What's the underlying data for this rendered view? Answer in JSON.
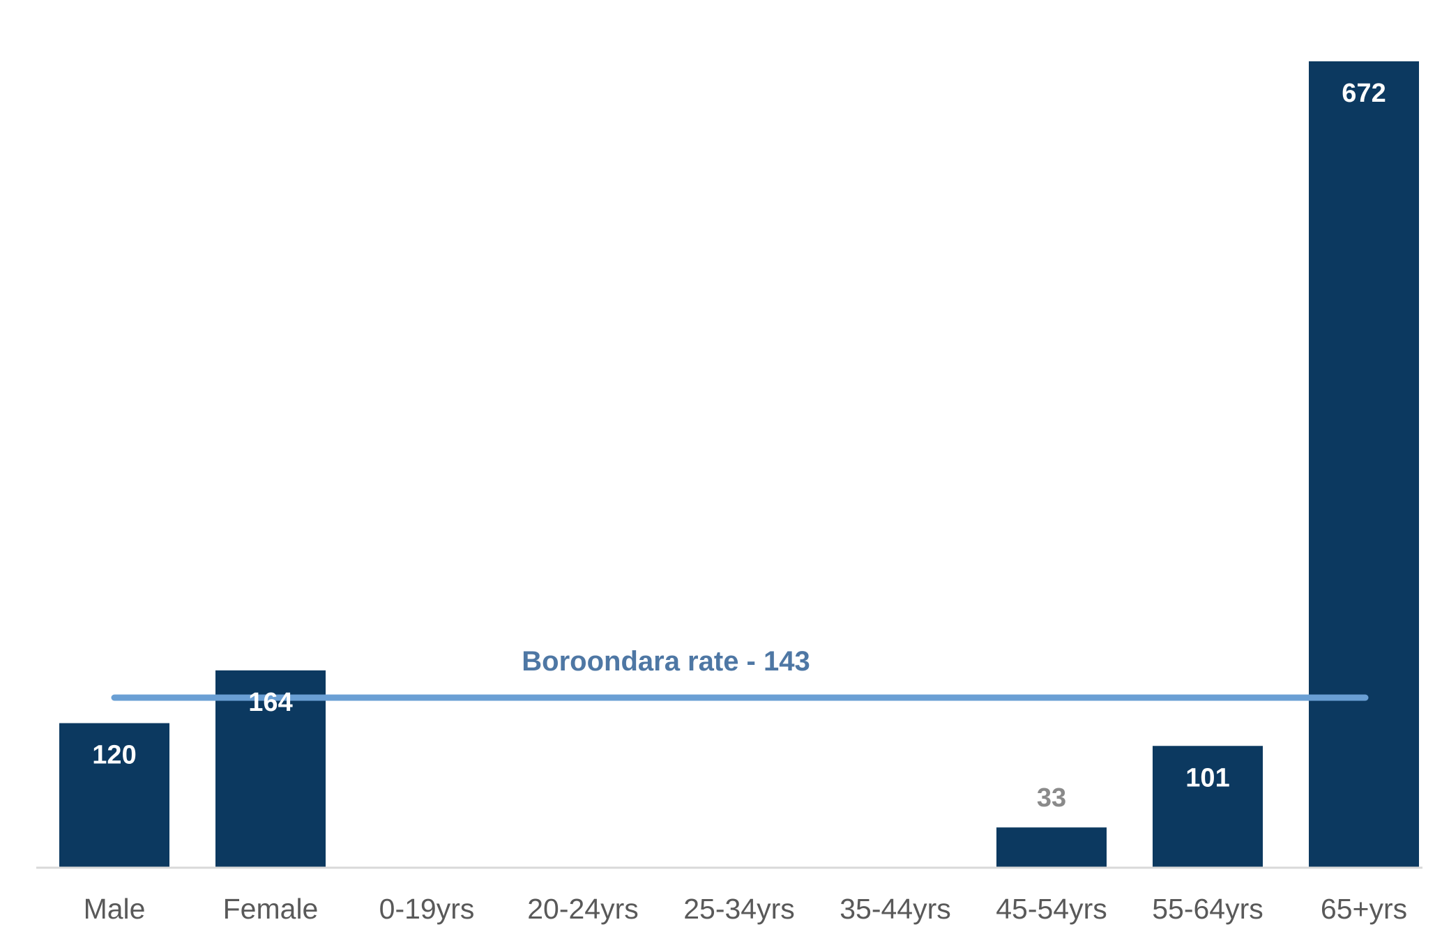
{
  "chart_data": {
    "type": "bar",
    "categories": [
      "Male",
      "Female",
      "0-19yrs",
      "20-24yrs",
      "25-34yrs",
      "35-44yrs",
      "45-54yrs",
      "55-64yrs",
      "65+yrs"
    ],
    "values": [
      120,
      164,
      0,
      0,
      0,
      0,
      33,
      101,
      672
    ],
    "data_labels": [
      "120",
      "164",
      "",
      "",
      "",
      "",
      "33",
      "101",
      "672"
    ],
    "title": "",
    "xlabel": "",
    "ylabel": "",
    "ylim": [
      0,
      680
    ],
    "grid": false,
    "legend": "none",
    "reference_line": {
      "label": "Boroondara rate - 143",
      "value": 143
    },
    "colors": {
      "bar": "#0C3960",
      "reference_line": "#6A9FD4",
      "reference_label": "#4E77A4",
      "label_inside": "#FFFFFF",
      "label_outside": "#8A8A8A",
      "category_label": "#595959",
      "axis": "#D9D9D9"
    }
  }
}
